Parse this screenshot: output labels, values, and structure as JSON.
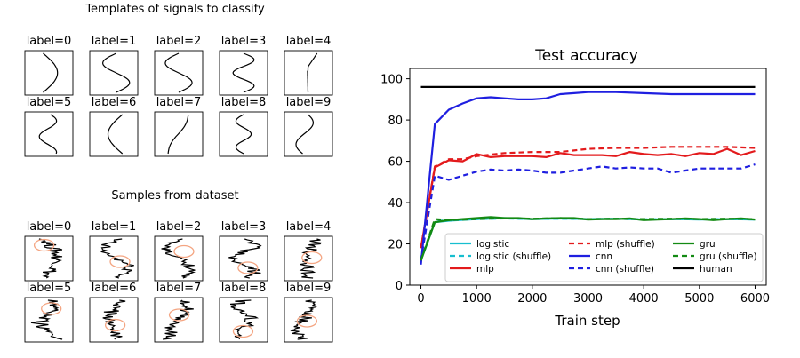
{
  "left_panel": {
    "templates_title": "Templates of signals to classify",
    "samples_title": "Samples from dataset",
    "labels": [
      "label=0",
      "label=1",
      "label=2",
      "label=3",
      "label=4",
      "label=5",
      "label=6",
      "label=7",
      "label=8",
      "label=9"
    ]
  },
  "colors": {
    "logistic": "#17becf",
    "mlp": "#e31a1c",
    "cnn": "#1f1fe0",
    "gru": "#138a13",
    "human": "#000000",
    "circle": "#f4a582"
  },
  "chart_data": {
    "type": "line",
    "title": "Test accuracy",
    "xlabel": "Train step",
    "ylabel": "",
    "xlim": [
      -200,
      6200
    ],
    "ylim": [
      0,
      105
    ],
    "xticks": [
      0,
      1000,
      2000,
      3000,
      4000,
      5000,
      6000
    ],
    "yticks": [
      0,
      20,
      40,
      60,
      80,
      100
    ],
    "grid": false,
    "legend_position": "bottom-right",
    "series": [
      {
        "name": "logistic",
        "style": "solid",
        "color_key": "logistic",
        "x": [
          0,
          250,
          500,
          1000,
          1500,
          2000,
          2500,
          3000,
          3500,
          4000,
          4500,
          5000,
          5500,
          6000
        ],
        "y": [
          12,
          30.5,
          31.2,
          32,
          32.5,
          32,
          32.3,
          32,
          32.2,
          31.8,
          32,
          31.8,
          32,
          31.8
        ]
      },
      {
        "name": "logistic (shuffle)",
        "style": "dashed",
        "color_key": "logistic",
        "x": [
          0,
          250,
          500,
          1000,
          1500,
          2000,
          2500,
          3000,
          3500,
          4000,
          4500,
          5000,
          5500,
          6000
        ],
        "y": [
          12,
          31,
          31.5,
          32,
          32.3,
          32,
          32.2,
          32,
          32.1,
          31.9,
          32,
          31.9,
          32,
          31.8
        ]
      },
      {
        "name": "mlp",
        "style": "solid",
        "color_key": "mlp",
        "x": [
          0,
          250,
          500,
          750,
          1000,
          1250,
          1500,
          1750,
          2000,
          2250,
          2500,
          2750,
          3000,
          3250,
          3500,
          3750,
          4000,
          4250,
          4500,
          4750,
          5000,
          5250,
          5500,
          5750,
          6000
        ],
        "y": [
          18,
          57,
          60.5,
          60,
          63.5,
          62,
          62.5,
          62.5,
          62.5,
          62,
          64,
          63,
          63,
          63,
          62.5,
          64.5,
          63.5,
          63,
          63.5,
          62.5,
          64,
          63.5,
          66,
          63,
          65
        ]
      },
      {
        "name": "mlp (shuffle)",
        "style": "dashed",
        "color_key": "mlp",
        "x": [
          0,
          250,
          500,
          750,
          1000,
          1500,
          2000,
          2500,
          3000,
          3500,
          4000,
          4500,
          5000,
          5500,
          6000
        ],
        "y": [
          18,
          57.5,
          61,
          61,
          62.5,
          64,
          64.5,
          64.5,
          66,
          66.5,
          66.5,
          67,
          67,
          67,
          66.5
        ]
      },
      {
        "name": "cnn",
        "style": "solid",
        "color_key": "cnn",
        "x": [
          0,
          250,
          500,
          750,
          1000,
          1250,
          1500,
          1750,
          2000,
          2250,
          2500,
          2750,
          3000,
          3250,
          3500,
          4000,
          4500,
          5000,
          5500,
          6000
        ],
        "y": [
          10,
          78,
          85,
          88,
          90.5,
          91,
          90.5,
          90,
          90,
          90.5,
          92.5,
          93,
          93.5,
          93.5,
          93.5,
          93,
          92.5,
          92.5,
          92.5,
          92.5
        ]
      },
      {
        "name": "cnn (shuffle)",
        "style": "dashed",
        "color_key": "cnn",
        "x": [
          0,
          250,
          500,
          750,
          1000,
          1250,
          1500,
          1750,
          2000,
          2250,
          2500,
          2750,
          3000,
          3250,
          3500,
          3750,
          4000,
          4250,
          4500,
          4750,
          5000,
          5250,
          5500,
          5750,
          6000
        ],
        "y": [
          12,
          53,
          51,
          53,
          55,
          56,
          55.5,
          56,
          55.5,
          54.5,
          54.5,
          55.5,
          56.5,
          57.5,
          56.5,
          57,
          56.5,
          56.5,
          54.5,
          55.5,
          56.5,
          56.5,
          56.5,
          56.5,
          58.5
        ]
      },
      {
        "name": "gru",
        "style": "solid",
        "color_key": "gru",
        "x": [
          0,
          250,
          500,
          750,
          1000,
          1250,
          1500,
          1750,
          2000,
          2250,
          2500,
          2750,
          3000,
          3250,
          3500,
          3750,
          4000,
          4250,
          4500,
          4750,
          5000,
          5250,
          5500,
          5750,
          6000
        ],
        "y": [
          12,
          30.5,
          31.5,
          32,
          32.5,
          33,
          32.5,
          32.5,
          32,
          32.3,
          32.5,
          32.5,
          31.8,
          32,
          32,
          32.3,
          31.5,
          31.8,
          32,
          32.3,
          32,
          31.5,
          32,
          32.3,
          31.8
        ]
      },
      {
        "name": "gru (shuffle)",
        "style": "dashed",
        "color_key": "gru",
        "x": [
          0,
          250,
          500,
          1000,
          1500,
          2000,
          2500,
          3000,
          3500,
          4000,
          4500,
          5000,
          5500,
          6000
        ],
        "y": [
          12,
          32,
          31.5,
          32,
          32.5,
          32.2,
          32.5,
          32,
          32.2,
          32,
          32.2,
          32,
          32.2,
          32
        ]
      },
      {
        "name": "human",
        "style": "solid",
        "color_key": "human",
        "x": [
          0,
          6000
        ],
        "y": [
          96,
          96
        ]
      }
    ]
  }
}
